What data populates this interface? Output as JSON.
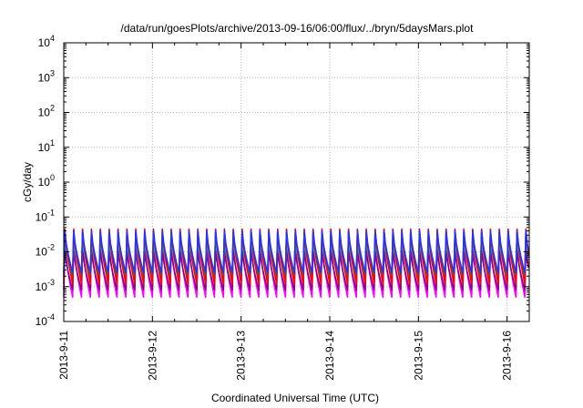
{
  "chart_data": {
    "type": "line",
    "title": "/data/run/goesPlots/archive/2013-09-16/06:00/flux/../bryn/5daysMars.plot",
    "xlabel": "Coordinated Universal Time (UTC)",
    "ylabel": "cGy/day",
    "y_scale": "log",
    "ylim": [
      0.0001,
      10000
    ],
    "y_tick_labels": [
      {
        "base": "10",
        "exp": "-4"
      },
      {
        "base": "10",
        "exp": "-3"
      },
      {
        "base": "10",
        "exp": "-2"
      },
      {
        "base": "10",
        "exp": "-1"
      },
      {
        "base": "10",
        "exp": "0"
      },
      {
        "base": "10",
        "exp": "1"
      },
      {
        "base": "10",
        "exp": "2"
      },
      {
        "base": "10",
        "exp": "3"
      },
      {
        "base": "10",
        "exp": "4"
      }
    ],
    "x_tick_labels": [
      "2013-9-11",
      "2013-9-12",
      "2013-9-13",
      "2013-9-14",
      "2013-9-15",
      "2013-9-16"
    ],
    "xlim": [
      "2013-09-11 00:00",
      "2013-09-16 06:00"
    ],
    "grid": true,
    "legend": "none",
    "sawtooth_periods_per_day": 10,
    "series": [
      {
        "color": "#ff0000",
        "values": {
          "peak": 0.045,
          "trough": 0.0012
        }
      },
      {
        "color": "#00aa00",
        "values": {
          "peak": 0.035,
          "trough": 0.002
        }
      },
      {
        "color": "#2233ff",
        "values": {
          "peak": 0.04,
          "trough": 0.0025
        }
      },
      {
        "color": "#00c8c8",
        "values": {
          "peak": 0.025,
          "trough": 0.0015
        }
      },
      {
        "color": "#ff00ff",
        "values": {
          "peak": 0.018,
          "trough": 0.0005
        }
      },
      {
        "color": "#880088",
        "values": {
          "peak": 0.012,
          "trough": 0.0008
        }
      }
    ]
  }
}
